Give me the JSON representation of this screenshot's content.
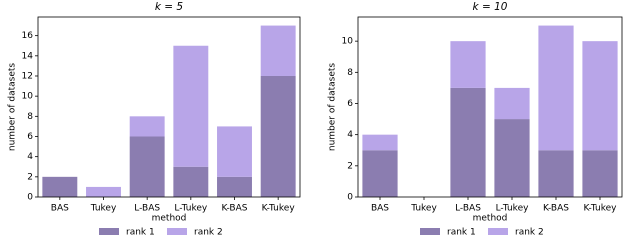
{
  "chart_data": [
    {
      "type": "bar",
      "stacked": true,
      "title": "k = 5",
      "x_label": "method",
      "y_label": "number of datasets",
      "categories": [
        "BAS",
        "Tukey",
        "L-BAS",
        "L-Tukey",
        "K-BAS",
        "K-Tukey"
      ],
      "series": [
        {
          "name": "rank 1",
          "color": "#8b7db0",
          "values": [
            2,
            0,
            6,
            3,
            2,
            12
          ]
        },
        {
          "name": "rank 2",
          "color": "#b8a5e8",
          "values": [
            0,
            1,
            2,
            12,
            5,
            5
          ]
        }
      ],
      "ylim": [
        0,
        17.85
      ],
      "yticks": [
        0,
        2,
        4,
        6,
        8,
        10,
        12,
        14,
        16
      ],
      "legend": "bottom"
    },
    {
      "type": "bar",
      "stacked": true,
      "title": "k = 10",
      "x_label": "method",
      "y_label": "number of datasets",
      "categories": [
        "BAS",
        "Tukey",
        "L-BAS",
        "L-Tukey",
        "K-BAS",
        "K-Tukey"
      ],
      "series": [
        {
          "name": "rank 1",
          "color": "#8b7db0",
          "values": [
            3,
            0,
            7,
            5,
            3,
            3
          ]
        },
        {
          "name": "rank 2",
          "color": "#b8a5e8",
          "values": [
            1,
            0,
            3,
            2,
            8,
            7
          ]
        }
      ],
      "ylim": [
        0,
        11.55
      ],
      "yticks": [
        0,
        2,
        4,
        6,
        8,
        10
      ],
      "legend": "bottom"
    }
  ]
}
